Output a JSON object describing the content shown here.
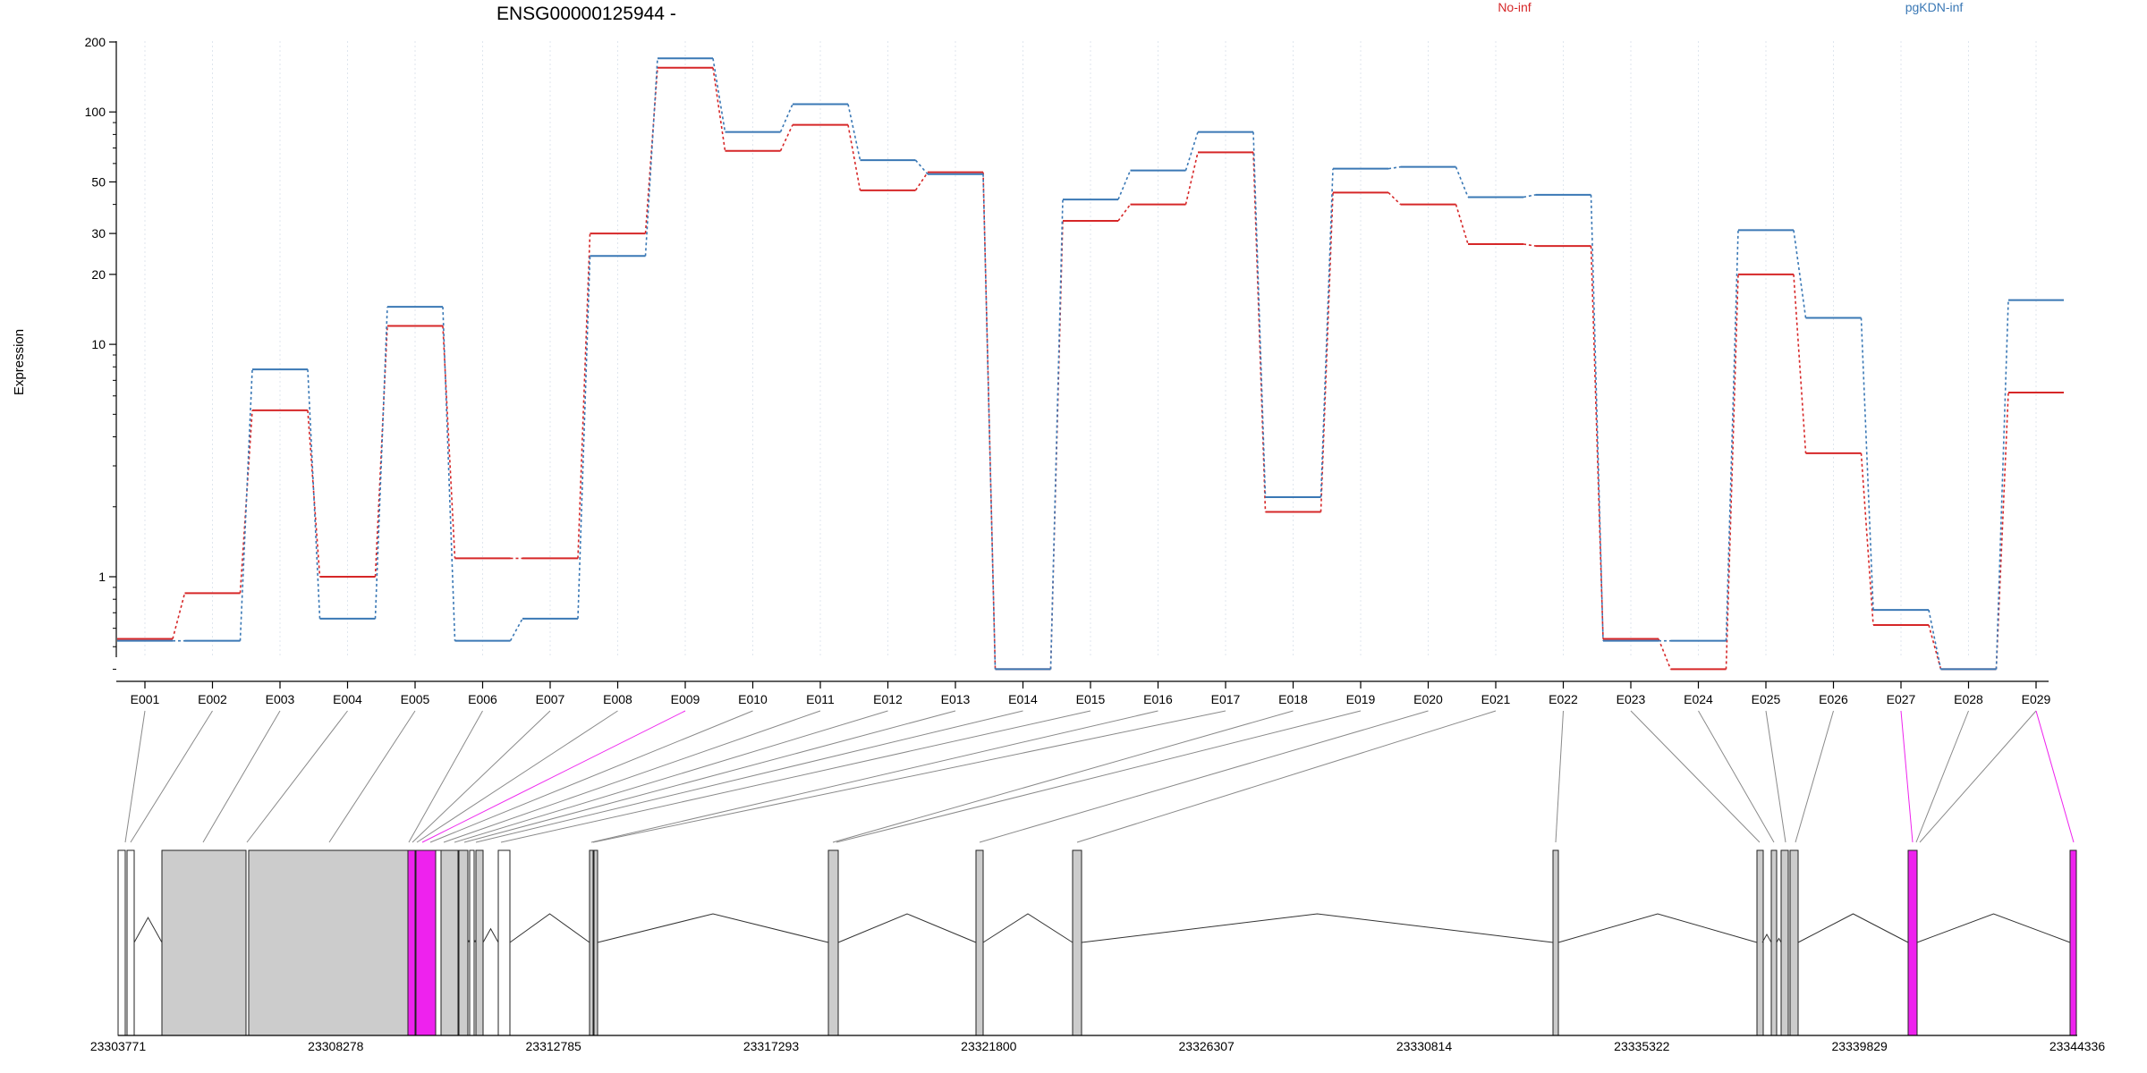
{
  "chart_data": {
    "type": "line",
    "title": "ENSG00000125944 -",
    "ylabel": "Expression",
    "yscale": "log",
    "ylim": [
      0.32,
      200
    ],
    "yticks": [
      1,
      10,
      20,
      30,
      50,
      100,
      200
    ],
    "grid": "vertical dotted",
    "legend_placement": "top",
    "categories": [
      "E001",
      "E002",
      "E003",
      "E004",
      "E005",
      "E006",
      "E007",
      "E008",
      "E009",
      "E010",
      "E011",
      "E012",
      "E013",
      "E014",
      "E015",
      "E016",
      "E017",
      "E018",
      "E019",
      "E020",
      "E021",
      "E022",
      "E023",
      "E024",
      "E025",
      "E026",
      "E027",
      "E028",
      "E029"
    ],
    "series": [
      {
        "name": "No-inf",
        "color": "#d62728",
        "values": [
          0.54,
          0.85,
          5.2,
          1.0,
          12,
          1.2,
          1.2,
          30,
          155,
          68,
          88,
          46,
          55,
          0.4,
          34,
          40,
          67,
          1.9,
          45,
          40,
          27,
          26.5,
          0.54,
          0.4,
          20,
          3.4,
          0.62,
          0.4,
          6.2
        ]
      },
      {
        "name": "pgKDN-inf",
        "color": "#3a78b5",
        "values": [
          0.53,
          0.53,
          7.8,
          0.66,
          14.5,
          0.53,
          0.66,
          24,
          170,
          82,
          108,
          62,
          54,
          0.4,
          42,
          56,
          82,
          2.2,
          57,
          58,
          43,
          44,
          0.53,
          0.53,
          31,
          13,
          0.72,
          0.4,
          15.5
        ]
      }
    ],
    "gene_model": {
      "coordinate_ticks": [
        "23303771",
        "23308278",
        "23312785",
        "23317293",
        "23321800",
        "23326307",
        "23330814",
        "23335322",
        "23339829",
        "23344336"
      ],
      "highlight_color": "#ee22ee",
      "exon_fill": "#cccccc"
    }
  }
}
